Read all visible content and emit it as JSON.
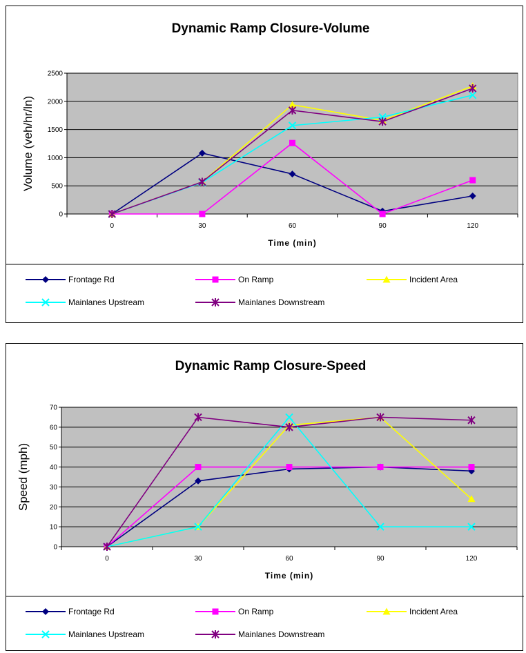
{
  "chart_data": [
    {
      "type": "line",
      "title": "Dynamic Ramp Closure-Volume",
      "xlabel": "Time (min)",
      "ylabel": "Volume (veh/hr/ln)",
      "categories": [
        "0",
        "30",
        "60",
        "90",
        "120"
      ],
      "ylim": [
        0,
        2500
      ],
      "yticks": [
        "0",
        "500",
        "1000",
        "1500",
        "2000",
        "2500"
      ],
      "grid": true,
      "legend_position": "bottom",
      "series": [
        {
          "name": "Frontage Rd",
          "color": "#000080",
          "marker": "diamond",
          "values": [
            0,
            1080,
            710,
            50,
            320
          ]
        },
        {
          "name": "On Ramp",
          "color": "#FF00FF",
          "marker": "square",
          "values": [
            0,
            0,
            1260,
            0,
            600
          ]
        },
        {
          "name": "Incident Area",
          "color": "#FFFF00",
          "marker": "triangle",
          "values": [
            0,
            570,
            1940,
            1660,
            2270
          ]
        },
        {
          "name": "Mainlanes Upstream",
          "color": "#00FFFF",
          "marker": "x",
          "values": [
            0,
            560,
            1570,
            1720,
            2110
          ]
        },
        {
          "name": "Mainlanes Downstream",
          "color": "#800080",
          "marker": "star",
          "values": [
            0,
            570,
            1840,
            1640,
            2230
          ]
        }
      ]
    },
    {
      "type": "line",
      "title": "Dynamic Ramp Closure-Speed",
      "xlabel": "Time (min)",
      "ylabel": "Speed (mph)",
      "categories": [
        "0",
        "30",
        "60",
        "90",
        "120"
      ],
      "ylim": [
        0,
        70
      ],
      "yticks": [
        "0",
        "10",
        "20",
        "30",
        "40",
        "50",
        "60",
        "70"
      ],
      "grid": true,
      "legend_position": "bottom",
      "series": [
        {
          "name": "Frontage Rd",
          "color": "#000080",
          "marker": "diamond",
          "values": [
            0,
            33,
            39,
            40,
            38
          ]
        },
        {
          "name": "On Ramp",
          "color": "#FF00FF",
          "marker": "square",
          "values": [
            0,
            40,
            40,
            40,
            40
          ]
        },
        {
          "name": "Incident Area",
          "color": "#FFFF00",
          "marker": "triangle",
          "values": [
            0,
            10,
            61,
            65,
            24
          ]
        },
        {
          "name": "Mainlanes Upstream",
          "color": "#00FFFF",
          "marker": "x",
          "values": [
            0,
            10,
            65,
            10,
            10
          ]
        },
        {
          "name": "Mainlanes Downstream",
          "color": "#800080",
          "marker": "star",
          "values": [
            0,
            65,
            60,
            65,
            63.5
          ]
        }
      ]
    }
  ]
}
